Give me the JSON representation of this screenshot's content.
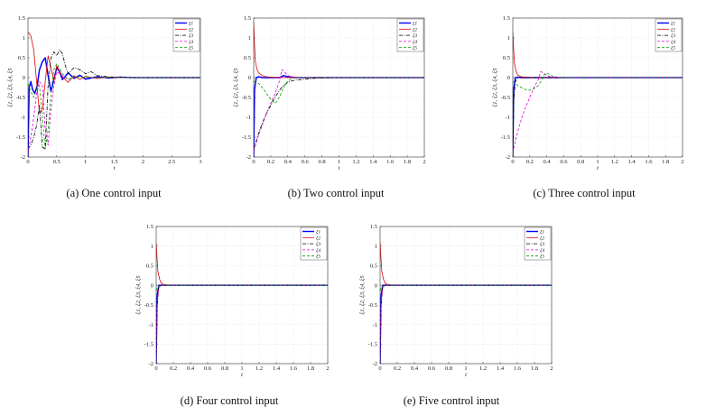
{
  "chart_data": [
    {
      "type": "line",
      "caption": "(a) One control input",
      "xlabel": "t",
      "ylabel": "ξ1, ξ2, ξ3, ξ4, ξ5",
      "xlim": [
        0,
        3
      ],
      "ylim": [
        -2,
        1.5
      ],
      "xticks": [
        "0",
        "0.5",
        "1",
        "1.5",
        "2",
        "2.5",
        "3"
      ],
      "yticks": [
        "1.5",
        "1",
        "0.5",
        "0",
        "-0.5",
        "-1",
        "-1.5",
        "-2"
      ],
      "grid": true,
      "legend_position": "top-right",
      "series": [
        {
          "name": "ξ1",
          "color": "#0000ff",
          "style": "solid-marker",
          "x": [
            0,
            0.02,
            0.05,
            0.08,
            0.12,
            0.16,
            0.2,
            0.25,
            0.3,
            0.35,
            0.4,
            0.45,
            0.5,
            0.55,
            0.6,
            0.7,
            0.8,
            0.9,
            1.0,
            1.2,
            1.4,
            1.6,
            1.8,
            2.0,
            2.2,
            2.5,
            3.0
          ],
          "y": [
            -2,
            -0.25,
            -0.1,
            -0.3,
            -0.4,
            -0.2,
            0.2,
            0.4,
            0.5,
            0.05,
            -0.35,
            -0.05,
            0.25,
            0.15,
            -0.05,
            0.12,
            -0.02,
            0.06,
            -0.04,
            0.02,
            -0.01,
            0.01,
            0,
            0,
            0,
            0,
            0
          ]
        },
        {
          "name": "ξ2",
          "color": "#e00000",
          "style": "solid",
          "x": [
            0,
            0.05,
            0.1,
            0.15,
            0.2,
            0.25,
            0.3,
            0.35,
            0.4,
            0.45,
            0.5,
            0.6,
            0.7,
            0.8,
            0.9,
            1.0,
            1.2,
            1.4,
            1.6,
            1.8,
            2.0,
            2.5,
            3.0
          ],
          "y": [
            1.15,
            1.05,
            0.7,
            -0.1,
            -0.9,
            -0.8,
            -0.1,
            0.55,
            0.25,
            -0.1,
            0.3,
            0.02,
            -0.12,
            0.05,
            -0.05,
            0.03,
            -0.02,
            0.01,
            0,
            0,
            0,
            0,
            0
          ]
        },
        {
          "name": "ξ3",
          "color": "#000000",
          "style": "dashdot",
          "x": [
            0,
            0.05,
            0.1,
            0.15,
            0.2,
            0.25,
            0.3,
            0.35,
            0.4,
            0.45,
            0.5,
            0.55,
            0.6,
            0.65,
            0.7,
            0.8,
            0.9,
            1.0,
            1.1,
            1.2,
            1.4,
            1.6,
            1.8,
            2.0,
            2.5,
            3.0
          ],
          "y": [
            -1.8,
            -1.7,
            -1.5,
            -1.2,
            -0.7,
            -1.75,
            -1.8,
            -0.2,
            0.5,
            0.65,
            0.55,
            0.7,
            0.6,
            0.3,
            0.1,
            0.25,
            0.2,
            0.1,
            0.15,
            0.05,
            0.02,
            0.01,
            0,
            0,
            0,
            0
          ]
        },
        {
          "name": "ξ4",
          "color": "#e000e0",
          "style": "dashed",
          "x": [
            0,
            0.05,
            0.1,
            0.15,
            0.2,
            0.25,
            0.3,
            0.35,
            0.4,
            0.45,
            0.5,
            0.6,
            0.7,
            0.8,
            1.0,
            1.2,
            1.5,
            2.0,
            3.0
          ],
          "y": [
            -1.9,
            -1.5,
            -1.0,
            -0.4,
            -0.1,
            -0.2,
            -1.3,
            -1.7,
            -0.8,
            -0.2,
            0.15,
            0.05,
            -0.05,
            0.02,
            0.01,
            0,
            0,
            0,
            0
          ]
        },
        {
          "name": "ξ5",
          "color": "#00a000",
          "style": "dashed",
          "x": [
            0,
            0.05,
            0.1,
            0.15,
            0.2,
            0.25,
            0.3,
            0.35,
            0.4,
            0.45,
            0.5,
            0.6,
            0.7,
            0.8,
            1.0,
            1.2,
            1.5,
            2.0,
            3.0
          ],
          "y": [
            -0.15,
            -0.35,
            -0.5,
            -0.3,
            -0.2,
            -1.0,
            -1.8,
            -1.3,
            -0.4,
            0.2,
            0.35,
            0.1,
            -0.05,
            0.02,
            0.01,
            0,
            0,
            0,
            0
          ]
        }
      ]
    },
    {
      "type": "line",
      "caption": "(b) Two control input",
      "xlabel": "t",
      "ylabel": "ξ1, ξ2, ξ3, ξ4, ξ5",
      "xlim": [
        0,
        2
      ],
      "ylim": [
        -2,
        1.5
      ],
      "xticks": [
        "0",
        "0.2",
        "0.4",
        "0.6",
        "0.8",
        "1",
        "1.2",
        "1.4",
        "1.6",
        "1.8",
        "2"
      ],
      "yticks": [
        "1.5",
        "1",
        "0.5",
        "0",
        "-0.5",
        "-1",
        "-1.5",
        "-2"
      ],
      "grid": true,
      "legend_position": "top-right",
      "series": [
        {
          "name": "ξ1",
          "color": "#0000ff",
          "style": "solid-marker",
          "x": [
            0,
            0.01,
            0.03,
            0.06,
            0.1,
            0.2,
            0.3,
            0.35,
            0.4,
            0.5,
            0.6,
            0.8,
            1.0,
            1.5,
            2.0
          ],
          "y": [
            -2,
            -0.3,
            0,
            0.02,
            0,
            0,
            0,
            0.05,
            0.02,
            0,
            0,
            0,
            0,
            0,
            0
          ]
        },
        {
          "name": "ξ2",
          "color": "#e00000",
          "style": "solid",
          "x": [
            0,
            0.01,
            0.02,
            0.04,
            0.06,
            0.1,
            0.15,
            0.2,
            0.3,
            0.4,
            0.5,
            0.7,
            1.0,
            1.5,
            2.0
          ],
          "y": [
            1.4,
            0.8,
            0.4,
            0.2,
            0.12,
            0.05,
            0.02,
            0.01,
            0,
            0,
            0,
            0,
            0,
            0,
            0
          ]
        },
        {
          "name": "ξ3",
          "color": "#000000",
          "style": "dashdot",
          "x": [
            0,
            0.05,
            0.1,
            0.15,
            0.2,
            0.25,
            0.3,
            0.35,
            0.4,
            0.45,
            0.5,
            0.55,
            0.6,
            0.7,
            0.8,
            1.0,
            1.5,
            2.0
          ],
          "y": [
            -1.8,
            -1.45,
            -1.15,
            -0.9,
            -0.7,
            -0.5,
            -0.32,
            -0.2,
            -0.12,
            -0.08,
            -0.06,
            -0.05,
            -0.04,
            -0.02,
            -0.01,
            0,
            0,
            0
          ]
        },
        {
          "name": "ξ4",
          "color": "#e000e0",
          "style": "dashed",
          "x": [
            0,
            0.05,
            0.1,
            0.15,
            0.2,
            0.25,
            0.3,
            0.33,
            0.36,
            0.4,
            0.45,
            0.5,
            0.6,
            0.8,
            1.0,
            1.5,
            2.0
          ],
          "y": [
            -1.85,
            -1.5,
            -1.2,
            -0.9,
            -0.65,
            -0.4,
            -0.1,
            0.2,
            0.15,
            0.05,
            0.02,
            0.01,
            0,
            0,
            0,
            0,
            0
          ]
        },
        {
          "name": "ξ5",
          "color": "#00a000",
          "style": "dashed",
          "x": [
            0,
            0.03,
            0.06,
            0.1,
            0.15,
            0.2,
            0.25,
            0.3,
            0.35,
            0.4,
            0.45,
            0.5,
            0.6,
            0.8,
            1.0,
            1.5,
            2.0
          ],
          "y": [
            -0.1,
            -0.12,
            -0.15,
            -0.25,
            -0.4,
            -0.55,
            -0.65,
            -0.5,
            -0.25,
            -0.08,
            -0.02,
            0,
            0,
            0,
            0,
            0,
            0
          ]
        }
      ]
    },
    {
      "type": "line",
      "caption": "(c) Three control input",
      "xlabel": "t",
      "ylabel": "ξ1, ξ2, ξ3, ξ4, ξ5",
      "xlim": [
        0,
        2
      ],
      "ylim": [
        -2,
        1.5
      ],
      "xticks": [
        "0",
        "0.2",
        "0.4",
        "0.6",
        "0.8",
        "1",
        "1.2",
        "1.4",
        "1.6",
        "1.8",
        "2"
      ],
      "yticks": [
        "1.5",
        "1",
        "0.5",
        "0",
        "-0.5",
        "-1",
        "-1.5",
        "-2"
      ],
      "grid": true,
      "legend_position": "top-right",
      "series": [
        {
          "name": "ξ1",
          "color": "#0000ff",
          "style": "solid-marker",
          "x": [
            0,
            0.01,
            0.03,
            0.06,
            0.1,
            0.2,
            0.4,
            0.6,
            1.0,
            1.5,
            2.0
          ],
          "y": [
            -2,
            -0.3,
            0,
            0.01,
            0,
            0,
            0,
            0,
            0,
            0,
            0
          ]
        },
        {
          "name": "ξ2",
          "color": "#e00000",
          "style": "solid",
          "x": [
            0,
            0.01,
            0.02,
            0.04,
            0.06,
            0.1,
            0.15,
            0.2,
            0.3,
            0.5,
            1.0,
            1.5,
            2.0
          ],
          "y": [
            1.15,
            0.7,
            0.35,
            0.15,
            0.06,
            0.02,
            0.01,
            0,
            0,
            0,
            0,
            0,
            0
          ]
        },
        {
          "name": "ξ3",
          "color": "#000000",
          "style": "dashdot",
          "x": [
            0,
            0.01,
            0.03,
            0.06,
            0.1,
            0.2,
            0.4,
            0.6,
            1.0,
            1.5,
            2.0
          ],
          "y": [
            -1.95,
            -0.6,
            -0.1,
            0,
            0,
            0,
            0,
            0,
            0,
            0,
            0
          ]
        },
        {
          "name": "ξ4",
          "color": "#e000e0",
          "style": "dashed",
          "x": [
            0,
            0.03,
            0.06,
            0.1,
            0.15,
            0.2,
            0.25,
            0.3,
            0.33,
            0.36,
            0.4,
            0.45,
            0.5,
            0.6,
            0.8,
            1.0,
            1.5,
            2.0
          ],
          "y": [
            -1.9,
            -1.6,
            -1.35,
            -1.05,
            -0.75,
            -0.5,
            -0.25,
            -0.05,
            0.15,
            0.12,
            0.05,
            0.02,
            0.01,
            0,
            0,
            0,
            0,
            0
          ]
        },
        {
          "name": "ξ5",
          "color": "#00a000",
          "style": "dashed",
          "x": [
            0,
            0.03,
            0.06,
            0.1,
            0.15,
            0.2,
            0.25,
            0.3,
            0.33,
            0.36,
            0.4,
            0.45,
            0.5,
            0.6,
            0.8,
            1.0,
            1.5,
            2.0
          ],
          "y": [
            -0.1,
            -0.15,
            -0.2,
            -0.25,
            -0.3,
            -0.32,
            -0.28,
            -0.2,
            -0.1,
            0.05,
            0.12,
            0.05,
            0.02,
            0,
            0,
            0,
            0,
            0
          ]
        }
      ]
    },
    {
      "type": "line",
      "caption": "(d) Four control input",
      "xlabel": "t",
      "ylabel": "ξ1, ξ2, ξ3, ξ4, ξ5",
      "xlim": [
        0,
        2
      ],
      "ylim": [
        -2,
        1.5
      ],
      "xticks": [
        "0",
        "0.2",
        "0.4",
        "0.6",
        "0.8",
        "1",
        "1.2",
        "1.4",
        "1.6",
        "1.8",
        "2"
      ],
      "yticks": [
        "1.5",
        "1",
        "0.5",
        "0",
        "-0.5",
        "-1",
        "-1.5",
        "-2"
      ],
      "grid": true,
      "legend_position": "top-right",
      "series": [
        {
          "name": "ξ1",
          "color": "#0000ff",
          "style": "solid-marker",
          "x": [
            0,
            0.01,
            0.03,
            0.06,
            0.1,
            0.3,
            0.6,
            1.0,
            1.5,
            2.0
          ],
          "y": [
            -2,
            -0.3,
            0,
            0,
            0,
            0,
            0,
            0,
            0,
            0
          ]
        },
        {
          "name": "ξ2",
          "color": "#e00000",
          "style": "solid",
          "x": [
            0,
            0.01,
            0.02,
            0.04,
            0.06,
            0.1,
            0.2,
            0.5,
            1.0,
            2.0
          ],
          "y": [
            1.1,
            0.7,
            0.35,
            0.15,
            0.05,
            0.01,
            0,
            0,
            0,
            0
          ]
        },
        {
          "name": "ξ3",
          "color": "#000000",
          "style": "dashdot",
          "x": [
            0,
            0.01,
            0.03,
            0.06,
            0.1,
            0.3,
            0.6,
            1.0,
            1.5,
            2.0
          ],
          "y": [
            -1.95,
            -0.6,
            -0.05,
            0,
            0,
            0,
            0,
            0,
            0,
            0
          ]
        },
        {
          "name": "ξ4",
          "color": "#e000e0",
          "style": "dashed",
          "x": [
            0,
            0.01,
            0.03,
            0.06,
            0.1,
            0.3,
            0.6,
            1.0,
            1.5,
            2.0
          ],
          "y": [
            -1.9,
            -0.55,
            -0.05,
            0,
            0,
            0,
            0,
            0,
            0,
            0
          ]
        },
        {
          "name": "ξ5",
          "color": "#00a000",
          "style": "dashed",
          "x": [
            0,
            0.01,
            0.03,
            0.06,
            0.1,
            0.3,
            0.6,
            1.0,
            1.5,
            2.0
          ],
          "y": [
            -0.15,
            -0.08,
            -0.02,
            0,
            0,
            0,
            0,
            0,
            0,
            0
          ]
        }
      ]
    },
    {
      "type": "line",
      "caption": "(e) Five control input",
      "xlabel": "t",
      "ylabel": "ξ1, ξ2, ξ3, ξ4, ξ5",
      "xlim": [
        0,
        2
      ],
      "ylim": [
        -2,
        1.5
      ],
      "xticks": [
        "0",
        "0.2",
        "0.4",
        "0.6",
        "0.8",
        "1",
        "1.2",
        "1.4",
        "1.6",
        "1.8",
        "2"
      ],
      "yticks": [
        "1.5",
        "1",
        "0.5",
        "0",
        "-0.5",
        "-1",
        "-1.5",
        "-2"
      ],
      "grid": true,
      "legend_position": "top-right",
      "series": [
        {
          "name": "ξ1",
          "color": "#0000ff",
          "style": "solid-marker",
          "x": [
            0,
            0.01,
            0.03,
            0.06,
            0.1,
            0.3,
            0.6,
            1.0,
            1.5,
            2.0
          ],
          "y": [
            -2,
            -0.3,
            0,
            0,
            0,
            0,
            0,
            0,
            0,
            0
          ]
        },
        {
          "name": "ξ2",
          "color": "#e00000",
          "style": "solid",
          "x": [
            0,
            0.01,
            0.02,
            0.04,
            0.06,
            0.1,
            0.2,
            0.5,
            1.0,
            2.0
          ],
          "y": [
            1.1,
            0.7,
            0.35,
            0.15,
            0.05,
            0.01,
            0,
            0,
            0,
            0
          ]
        },
        {
          "name": "ξ3",
          "color": "#000000",
          "style": "dashdot",
          "x": [
            0,
            0.01,
            0.03,
            0.06,
            0.1,
            0.3,
            0.6,
            1.0,
            1.5,
            2.0
          ],
          "y": [
            -1.95,
            -0.6,
            -0.05,
            0,
            0,
            0,
            0,
            0,
            0,
            0
          ]
        },
        {
          "name": "ξ4",
          "color": "#e000e0",
          "style": "dashed",
          "x": [
            0,
            0.01,
            0.03,
            0.06,
            0.1,
            0.3,
            0.6,
            1.0,
            1.5,
            2.0
          ],
          "y": [
            -1.9,
            -0.55,
            -0.05,
            0,
            0,
            0,
            0,
            0,
            0,
            0
          ]
        },
        {
          "name": "ξ5",
          "color": "#00a000",
          "style": "dashed",
          "x": [
            0,
            0.01,
            0.03,
            0.06,
            0.1,
            0.3,
            0.6,
            1.0,
            1.5,
            2.0
          ],
          "y": [
            -0.15,
            -0.08,
            -0.02,
            0,
            0,
            0,
            0,
            0,
            0,
            0
          ]
        }
      ]
    }
  ]
}
